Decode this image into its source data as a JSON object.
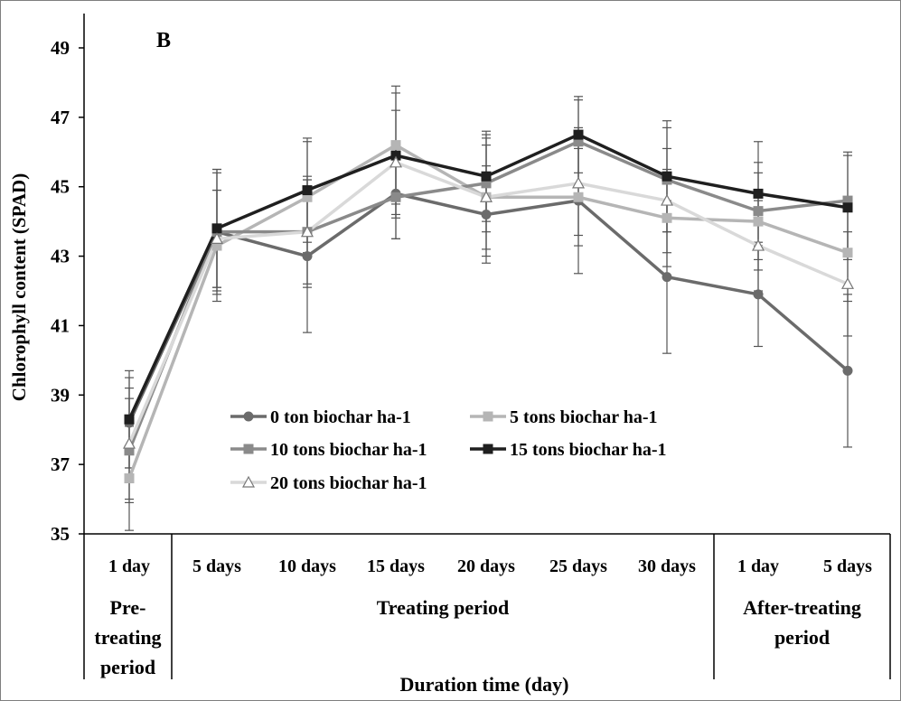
{
  "chart_data": {
    "type": "line",
    "panel_label": "B",
    "ylabel": "Chlorophyll content  (SPAD)",
    "xlabel": "Duration time (day)",
    "ylim": [
      35,
      50
    ],
    "yticks": [
      35,
      37,
      39,
      41,
      43,
      45,
      47,
      49
    ],
    "categories": [
      "1 day",
      "5 days",
      "10 days",
      "15 days",
      "20 days",
      "25 days",
      "30 days",
      "1 day",
      "5 days"
    ],
    "groups": [
      {
        "label": "Pre-\ntreating\nperiod",
        "start": 0,
        "end": 0
      },
      {
        "label": "Treating period",
        "start": 1,
        "end": 6
      },
      {
        "label": "After-treating\nperiod",
        "start": 7,
        "end": 8
      }
    ],
    "grid": false,
    "legend_position": "lower-center",
    "series": [
      {
        "name": "0 ton biochar ha-1",
        "color": "#6b6b6b",
        "marker": "circle",
        "values": [
          38.2,
          43.7,
          43.0,
          44.8,
          44.2,
          44.6,
          42.4,
          41.9,
          39.7
        ],
        "errors": [
          1.3,
          1.8,
          2.2,
          1.3,
          1.4,
          2.1,
          2.2,
          1.5,
          2.2
        ]
      },
      {
        "name": "5 tons biochar ha-1",
        "color": "#b5b5b5",
        "marker": "square",
        "values": [
          36.6,
          43.3,
          44.7,
          46.2,
          44.7,
          44.7,
          44.1,
          44.0,
          43.1
        ],
        "errors": [
          1.5,
          1.6,
          1.6,
          1.7,
          1.7,
          1.4,
          1.4,
          1.4,
          1.4
        ]
      },
      {
        "name": "10 tons biochar ha-1",
        "color": "#8a8a8a",
        "marker": "square",
        "values": [
          37.4,
          43.7,
          43.7,
          44.7,
          45.1,
          46.3,
          45.2,
          44.3,
          44.6
        ],
        "errors": [
          1.5,
          1.7,
          1.6,
          1.2,
          1.4,
          1.2,
          1.5,
          1.4,
          1.4
        ]
      },
      {
        "name": "15 tons biochar ha-1",
        "color": "#1f1f1f",
        "marker": "square",
        "values": [
          38.3,
          43.8,
          44.9,
          45.9,
          45.3,
          46.5,
          45.3,
          44.8,
          44.4
        ],
        "errors": [
          1.4,
          1.7,
          1.5,
          1.8,
          1.3,
          1.1,
          1.6,
          1.5,
          1.5
        ]
      },
      {
        "name": "20 tons biochar ha-1",
        "color": "#d9d9d9",
        "marker": "triangle",
        "values": [
          37.6,
          43.5,
          43.7,
          45.7,
          44.7,
          45.1,
          44.6,
          43.3,
          42.2
        ],
        "errors": [
          1.6,
          1.4,
          1.5,
          1.5,
          1.5,
          1.5,
          1.5,
          1.3,
          1.5
        ]
      }
    ]
  }
}
